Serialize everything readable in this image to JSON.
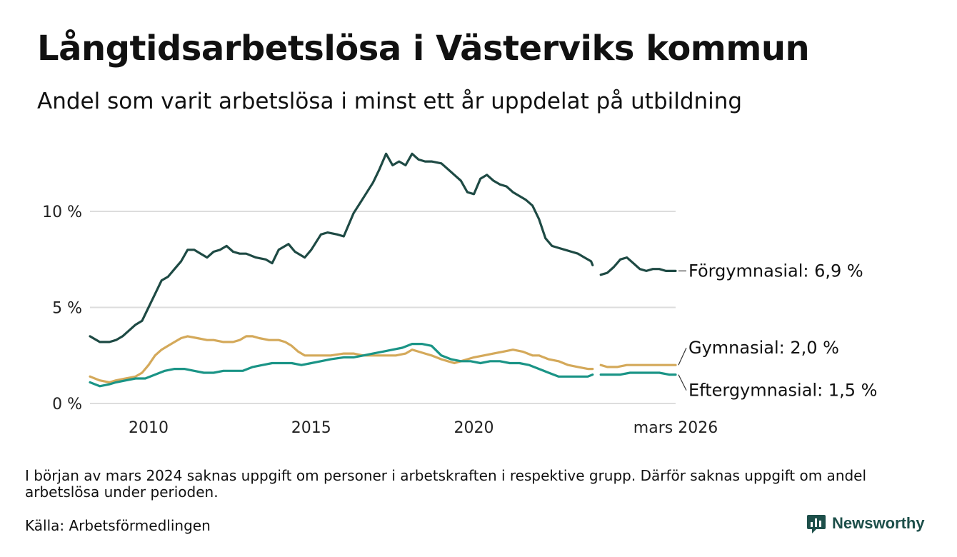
{
  "colors": {
    "forgymnasial": "#1e4a44",
    "gymnasial": "#d4a95a",
    "eftergymnasial": "#1a9486",
    "grid": "#dddddd",
    "brand": "#1d4f4a"
  },
  "brand": {
    "name": "Newsworthy",
    "icon": "bar-chart-logo-icon"
  },
  "note": "I början av mars 2024 saknas uppgift om personer i arbetskraften i respektive grupp. Därför saknas uppgift om andel arbetslösa under perioden.",
  "source": "Källa: Arbetsförmedlingen",
  "chart_data": {
    "type": "line",
    "title": "Långtidsarbetslösa i Västerviks kommun",
    "subtitle": "Andel som varit arbetslösa i minst ett år uppdelat på utbildning",
    "xlabel": "",
    "ylabel": "",
    "x_range": [
      2008.2,
      2026.2
    ],
    "ylim": [
      0,
      14
    ],
    "grid": true,
    "y_ticks": [
      {
        "value": 0,
        "label": "0 %"
      },
      {
        "value": 5,
        "label": "5 %"
      },
      {
        "value": 10,
        "label": "10 %"
      }
    ],
    "x_ticks": [
      {
        "value": 2010,
        "label": "2010"
      },
      {
        "value": 2015,
        "label": "2015"
      },
      {
        "value": 2020,
        "label": "2020"
      },
      {
        "value": 2026.2,
        "label": "mars 2026"
      }
    ],
    "gap": [
      2023.65,
      2023.9
    ],
    "series": [
      {
        "name": "Förgymnasial",
        "end_label": "Förgymnasial: 6,9 %",
        "color_key": "forgymnasial",
        "points": [
          [
            2008.2,
            3.5
          ],
          [
            2008.5,
            3.2
          ],
          [
            2008.8,
            3.2
          ],
          [
            2009.0,
            3.3
          ],
          [
            2009.2,
            3.5
          ],
          [
            2009.4,
            3.8
          ],
          [
            2009.6,
            4.1
          ],
          [
            2009.8,
            4.3
          ],
          [
            2010.0,
            5.0
          ],
          [
            2010.2,
            5.7
          ],
          [
            2010.4,
            6.4
          ],
          [
            2010.6,
            6.6
          ],
          [
            2010.8,
            7.0
          ],
          [
            2011.0,
            7.4
          ],
          [
            2011.2,
            8.0
          ],
          [
            2011.4,
            8.0
          ],
          [
            2011.6,
            7.8
          ],
          [
            2011.8,
            7.6
          ],
          [
            2012.0,
            7.9
          ],
          [
            2012.2,
            8.0
          ],
          [
            2012.4,
            8.2
          ],
          [
            2012.6,
            7.9
          ],
          [
            2012.8,
            7.8
          ],
          [
            2013.0,
            7.8
          ],
          [
            2013.3,
            7.6
          ],
          [
            2013.6,
            7.5
          ],
          [
            2013.8,
            7.3
          ],
          [
            2014.0,
            8.0
          ],
          [
            2014.3,
            8.3
          ],
          [
            2014.5,
            7.9
          ],
          [
            2014.8,
            7.6
          ],
          [
            2015.0,
            8.0
          ],
          [
            2015.3,
            8.8
          ],
          [
            2015.5,
            8.9
          ],
          [
            2015.8,
            8.8
          ],
          [
            2016.0,
            8.7
          ],
          [
            2016.3,
            9.9
          ],
          [
            2016.6,
            10.7
          ],
          [
            2016.9,
            11.5
          ],
          [
            2017.1,
            12.2
          ],
          [
            2017.3,
            13.0
          ],
          [
            2017.5,
            12.4
          ],
          [
            2017.7,
            12.6
          ],
          [
            2017.9,
            12.4
          ],
          [
            2018.1,
            13.0
          ],
          [
            2018.3,
            12.7
          ],
          [
            2018.5,
            12.6
          ],
          [
            2018.7,
            12.6
          ],
          [
            2019.0,
            12.5
          ],
          [
            2019.2,
            12.2
          ],
          [
            2019.4,
            11.9
          ],
          [
            2019.6,
            11.6
          ],
          [
            2019.8,
            11.0
          ],
          [
            2020.0,
            10.9
          ],
          [
            2020.2,
            11.7
          ],
          [
            2020.4,
            11.9
          ],
          [
            2020.6,
            11.6
          ],
          [
            2020.8,
            11.4
          ],
          [
            2021.0,
            11.3
          ],
          [
            2021.2,
            11.0
          ],
          [
            2021.4,
            10.8
          ],
          [
            2021.6,
            10.6
          ],
          [
            2021.8,
            10.3
          ],
          [
            2022.0,
            9.6
          ],
          [
            2022.2,
            8.6
          ],
          [
            2022.4,
            8.2
          ],
          [
            2022.6,
            8.1
          ],
          [
            2022.8,
            8.0
          ],
          [
            2023.0,
            7.9
          ],
          [
            2023.2,
            7.8
          ],
          [
            2023.4,
            7.6
          ],
          [
            2023.6,
            7.4
          ],
          [
            2023.65,
            7.2
          ],
          [
            2023.9,
            6.7
          ],
          [
            2024.1,
            6.8
          ],
          [
            2024.3,
            7.1
          ],
          [
            2024.5,
            7.5
          ],
          [
            2024.7,
            7.6
          ],
          [
            2024.9,
            7.3
          ],
          [
            2025.1,
            7.0
          ],
          [
            2025.3,
            6.9
          ],
          [
            2025.5,
            7.0
          ],
          [
            2025.7,
            7.0
          ],
          [
            2025.9,
            6.9
          ],
          [
            2026.1,
            6.9
          ],
          [
            2026.2,
            6.9
          ]
        ]
      },
      {
        "name": "Gymnasial",
        "end_label": "Gymnasial: 2,0 %",
        "color_key": "gymnasial",
        "points": [
          [
            2008.2,
            1.4
          ],
          [
            2008.5,
            1.2
          ],
          [
            2008.8,
            1.1
          ],
          [
            2009.0,
            1.2
          ],
          [
            2009.3,
            1.3
          ],
          [
            2009.6,
            1.4
          ],
          [
            2009.8,
            1.6
          ],
          [
            2010.0,
            2.0
          ],
          [
            2010.2,
            2.5
          ],
          [
            2010.4,
            2.8
          ],
          [
            2010.6,
            3.0
          ],
          [
            2010.8,
            3.2
          ],
          [
            2011.0,
            3.4
          ],
          [
            2011.2,
            3.5
          ],
          [
            2011.5,
            3.4
          ],
          [
            2011.8,
            3.3
          ],
          [
            2012.0,
            3.3
          ],
          [
            2012.3,
            3.2
          ],
          [
            2012.6,
            3.2
          ],
          [
            2012.8,
            3.3
          ],
          [
            2013.0,
            3.5
          ],
          [
            2013.2,
            3.5
          ],
          [
            2013.4,
            3.4
          ],
          [
            2013.7,
            3.3
          ],
          [
            2014.0,
            3.3
          ],
          [
            2014.2,
            3.2
          ],
          [
            2014.4,
            3.0
          ],
          [
            2014.6,
            2.7
          ],
          [
            2014.8,
            2.5
          ],
          [
            2015.0,
            2.5
          ],
          [
            2015.3,
            2.5
          ],
          [
            2015.6,
            2.5
          ],
          [
            2016.0,
            2.6
          ],
          [
            2016.3,
            2.6
          ],
          [
            2016.6,
            2.5
          ],
          [
            2017.0,
            2.5
          ],
          [
            2017.3,
            2.5
          ],
          [
            2017.6,
            2.5
          ],
          [
            2017.9,
            2.6
          ],
          [
            2018.1,
            2.8
          ],
          [
            2018.3,
            2.7
          ],
          [
            2018.5,
            2.6
          ],
          [
            2018.7,
            2.5
          ],
          [
            2019.0,
            2.3
          ],
          [
            2019.2,
            2.2
          ],
          [
            2019.4,
            2.1
          ],
          [
            2019.6,
            2.2
          ],
          [
            2019.8,
            2.3
          ],
          [
            2020.0,
            2.4
          ],
          [
            2020.3,
            2.5
          ],
          [
            2020.6,
            2.6
          ],
          [
            2020.9,
            2.7
          ],
          [
            2021.2,
            2.8
          ],
          [
            2021.5,
            2.7
          ],
          [
            2021.8,
            2.5
          ],
          [
            2022.0,
            2.5
          ],
          [
            2022.3,
            2.3
          ],
          [
            2022.6,
            2.2
          ],
          [
            2022.9,
            2.0
          ],
          [
            2023.2,
            1.9
          ],
          [
            2023.5,
            1.8
          ],
          [
            2023.65,
            1.8
          ],
          [
            2023.9,
            2.0
          ],
          [
            2024.1,
            1.9
          ],
          [
            2024.4,
            1.9
          ],
          [
            2024.7,
            2.0
          ],
          [
            2025.0,
            2.0
          ],
          [
            2025.3,
            2.0
          ],
          [
            2025.6,
            2.0
          ],
          [
            2025.9,
            2.0
          ],
          [
            2026.2,
            2.0
          ]
        ]
      },
      {
        "name": "Eftergymnasial",
        "end_label": "Eftergymnasial: 1,5 %",
        "color_key": "eftergymnasial",
        "points": [
          [
            2008.2,
            1.1
          ],
          [
            2008.5,
            0.9
          ],
          [
            2008.8,
            1.0
          ],
          [
            2009.0,
            1.1
          ],
          [
            2009.3,
            1.2
          ],
          [
            2009.6,
            1.3
          ],
          [
            2009.9,
            1.3
          ],
          [
            2010.2,
            1.5
          ],
          [
            2010.5,
            1.7
          ],
          [
            2010.8,
            1.8
          ],
          [
            2011.1,
            1.8
          ],
          [
            2011.4,
            1.7
          ],
          [
            2011.7,
            1.6
          ],
          [
            2012.0,
            1.6
          ],
          [
            2012.3,
            1.7
          ],
          [
            2012.6,
            1.7
          ],
          [
            2012.9,
            1.7
          ],
          [
            2013.2,
            1.9
          ],
          [
            2013.5,
            2.0
          ],
          [
            2013.8,
            2.1
          ],
          [
            2014.1,
            2.1
          ],
          [
            2014.4,
            2.1
          ],
          [
            2014.7,
            2.0
          ],
          [
            2015.0,
            2.1
          ],
          [
            2015.3,
            2.2
          ],
          [
            2015.6,
            2.3
          ],
          [
            2016.0,
            2.4
          ],
          [
            2016.3,
            2.4
          ],
          [
            2016.6,
            2.5
          ],
          [
            2016.9,
            2.6
          ],
          [
            2017.2,
            2.7
          ],
          [
            2017.5,
            2.8
          ],
          [
            2017.8,
            2.9
          ],
          [
            2018.1,
            3.1
          ],
          [
            2018.4,
            3.1
          ],
          [
            2018.7,
            3.0
          ],
          [
            2019.0,
            2.5
          ],
          [
            2019.3,
            2.3
          ],
          [
            2019.6,
            2.2
          ],
          [
            2019.9,
            2.2
          ],
          [
            2020.2,
            2.1
          ],
          [
            2020.5,
            2.2
          ],
          [
            2020.8,
            2.2
          ],
          [
            2021.1,
            2.1
          ],
          [
            2021.4,
            2.1
          ],
          [
            2021.7,
            2.0
          ],
          [
            2022.0,
            1.8
          ],
          [
            2022.3,
            1.6
          ],
          [
            2022.6,
            1.4
          ],
          [
            2022.9,
            1.4
          ],
          [
            2023.2,
            1.4
          ],
          [
            2023.5,
            1.4
          ],
          [
            2023.65,
            1.5
          ],
          [
            2023.9,
            1.5
          ],
          [
            2024.2,
            1.5
          ],
          [
            2024.5,
            1.5
          ],
          [
            2024.8,
            1.6
          ],
          [
            2025.1,
            1.6
          ],
          [
            2025.4,
            1.6
          ],
          [
            2025.7,
            1.6
          ],
          [
            2026.0,
            1.5
          ],
          [
            2026.2,
            1.5
          ]
        ]
      }
    ]
  }
}
